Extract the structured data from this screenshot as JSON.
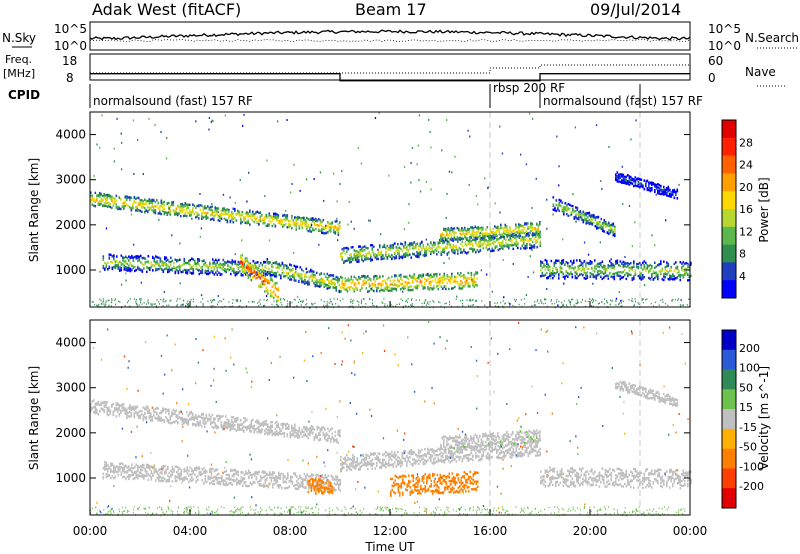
{
  "header": {
    "station": "Adak West (fitACF)",
    "beam": "Beam 17",
    "date": "09/Jul/2014"
  },
  "strips": {
    "nsky_label": "N.Sky",
    "nsky_top": "10^5",
    "nsky_bottom": "10^0",
    "nsearch_label": "N.Search",
    "freq_label_line1": "Freq.",
    "freq_label_line2": "[MHz]",
    "freq_top": "18",
    "freq_bottom": "8",
    "nave_label": "Nave",
    "nave_top": "60",
    "nave_bottom": "0",
    "cpid_label": "CPID",
    "cpid_segments": [
      {
        "label": "normalsound (fast) 157 RF",
        "start_hour": 0,
        "end_hour": 16
      },
      {
        "label": "rbsp 200 RF",
        "start_hour": 16,
        "end_hour": 18
      },
      {
        "label": "normalsound (fast) 157 RF",
        "start_hour": 18,
        "end_hour": 22
      }
    ]
  },
  "axes": {
    "ylabel": "Slant Range [km]",
    "xlabel": "Time UT",
    "y_ticks": [
      "1000",
      "2000",
      "3000",
      "4000"
    ],
    "x_ticks": [
      "00:00",
      "04:00",
      "08:00",
      "12:00",
      "16:00",
      "20:00",
      "00:00"
    ]
  },
  "power_colorbar": {
    "label": "Power [dB]",
    "ticks": [
      "4",
      "8",
      "12",
      "16",
      "20",
      "24",
      "28"
    ],
    "colors": [
      "#0000ff",
      "#1f3fbf",
      "#2f8f4f",
      "#5cb84c",
      "#b8d830",
      "#ffd700",
      "#ffa000",
      "#ff6000",
      "#ff2000",
      "#e00000"
    ]
  },
  "velocity_colorbar": {
    "label": "Velocity [m s^-1]",
    "ticks": [
      "200",
      "100",
      "50",
      "15",
      "-15",
      "-50",
      "-100",
      "-200"
    ],
    "colors": [
      "#0000c8",
      "#2a5ad8",
      "#2e8b57",
      "#6dc34d",
      "#c0c0c0",
      "#ffb000",
      "#ff8000",
      "#ff4000",
      "#e00000"
    ]
  },
  "chart_data": [
    {
      "type": "heatmap",
      "quantity": "Power",
      "units": "dB",
      "x_range_hours": [
        0,
        24
      ],
      "y_range_km": [
        180,
        4500
      ],
      "bands": [
        {
          "start_hour": 0.0,
          "end_hour": 10.0,
          "range_start_km": 2600,
          "range_end_km": 1950,
          "width_km": 220,
          "power_db": 20
        },
        {
          "start_hour": 0.5,
          "end_hour": 7.0,
          "range_start_km": 1200,
          "range_end_km": 1050,
          "width_km": 250,
          "power_db": 16
        },
        {
          "start_hour": 6.0,
          "end_hour": 7.5,
          "range_start_km": 1200,
          "range_end_km": 500,
          "width_km": 300,
          "power_db": 26
        },
        {
          "start_hour": 7.0,
          "end_hour": 10.0,
          "range_start_km": 1100,
          "range_end_km": 700,
          "width_km": 250,
          "power_db": 18
        },
        {
          "start_hour": 10.0,
          "end_hour": 18.0,
          "range_start_km": 1350,
          "range_end_km": 1700,
          "width_km": 250,
          "power_db": 18
        },
        {
          "start_hour": 10.0,
          "end_hour": 15.5,
          "range_start_km": 700,
          "range_end_km": 800,
          "width_km": 250,
          "power_db": 22
        },
        {
          "start_hour": 14.0,
          "end_hour": 18.0,
          "range_start_km": 1800,
          "range_end_km": 1950,
          "width_km": 200,
          "power_db": 20
        },
        {
          "start_hour": 18.0,
          "end_hour": 24.0,
          "range_start_km": 1050,
          "range_end_km": 1000,
          "width_km": 300,
          "power_db": 16
        },
        {
          "start_hour": 18.5,
          "end_hour": 21.0,
          "range_start_km": 2500,
          "range_end_km": 1900,
          "width_km": 200,
          "power_db": 16
        },
        {
          "start_hour": 21.0,
          "end_hour": 23.5,
          "range_start_km": 3100,
          "range_end_km": 2700,
          "width_km": 150,
          "power_db": 8
        }
      ]
    },
    {
      "type": "heatmap",
      "quantity": "Velocity",
      "units": "m s^-1",
      "x_range_hours": [
        0,
        24
      ],
      "y_range_km": [
        180,
        4500
      ],
      "bands": [
        {
          "start_hour": 0.0,
          "end_hour": 10.0,
          "range_start_km": 2600,
          "range_end_km": 1950,
          "width_km": 220,
          "velocity": 0
        },
        {
          "start_hour": 0.5,
          "end_hour": 10.0,
          "range_start_km": 1200,
          "range_end_km": 900,
          "width_km": 250,
          "velocity": 0
        },
        {
          "start_hour": 8.7,
          "end_hour": 9.7,
          "range_start_km": 850,
          "range_end_km": 850,
          "width_km": 250,
          "velocity": -60
        },
        {
          "start_hour": 10.0,
          "end_hour": 18.0,
          "range_start_km": 1350,
          "range_end_km": 1700,
          "width_km": 250,
          "velocity": 0
        },
        {
          "start_hour": 12.0,
          "end_hour": 15.5,
          "range_start_km": 850,
          "range_end_km": 950,
          "width_km": 320,
          "velocity": -60
        },
        {
          "start_hour": 14.0,
          "end_hour": 18.0,
          "range_start_km": 1800,
          "range_end_km": 1950,
          "width_km": 200,
          "velocity": 10
        },
        {
          "start_hour": 18.0,
          "end_hour": 24.0,
          "range_start_km": 1050,
          "range_end_km": 1000,
          "width_km": 300,
          "velocity": 0
        },
        {
          "start_hour": 21.0,
          "end_hour": 23.5,
          "range_start_km": 3100,
          "range_end_km": 2700,
          "width_km": 150,
          "velocity": 0
        }
      ]
    }
  ]
}
